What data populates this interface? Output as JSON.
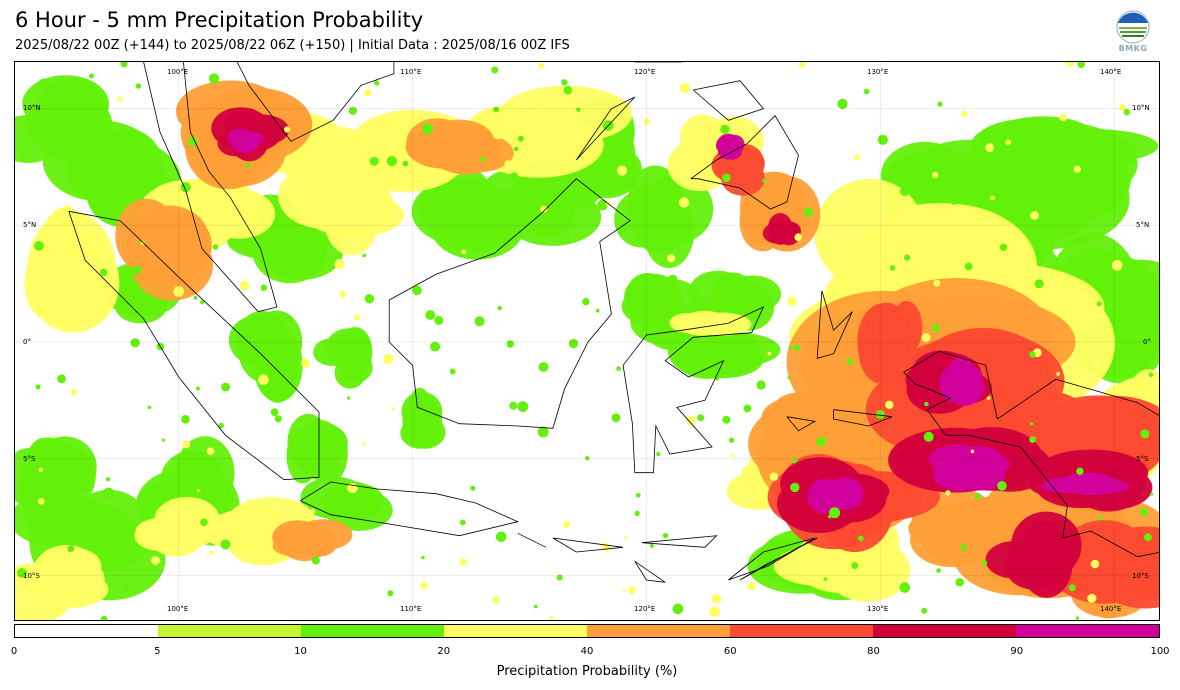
{
  "header": {
    "title": "6 Hour - 5 mm Precipitation Probability",
    "subtitle": "2025/08/22 00Z (+144) to 2025/08/22 06Z (+150) | Initial Data : 2025/08/16 00Z IFS"
  },
  "logo": {
    "text": "BMKG",
    "icon": "bmkg-logo-icon"
  },
  "map": {
    "lon_labels": [
      "100°E",
      "110°E",
      "120°E",
      "130°E",
      "140°E"
    ],
    "lat_labels": [
      "10°N",
      "5°N",
      "0°",
      "5°S",
      "10°S"
    ],
    "lon_range": [
      93,
      142
    ],
    "lat_range": [
      12,
      -12
    ],
    "gridlines": true
  },
  "colorbar": {
    "title": "Precipitation Probability (%)",
    "ticks": [
      "0",
      "5",
      "10",
      "20",
      "40",
      "60",
      "80",
      "90",
      "100"
    ],
    "colors": [
      "#ffffff",
      "#c8f531",
      "#63f00a",
      "#ffff64",
      "#ff9f37",
      "#fc4b32",
      "#d2003c",
      "#d2009b"
    ]
  }
}
